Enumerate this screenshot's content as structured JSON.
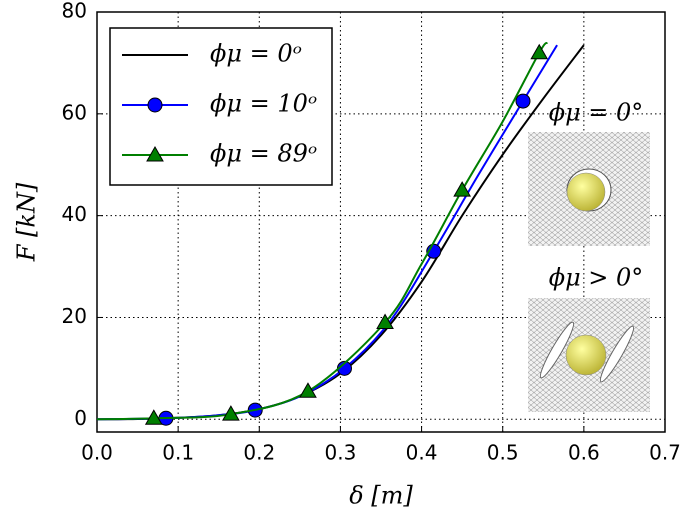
{
  "chart_data": {
    "type": "line",
    "xlabel": "δ [m]",
    "ylabel": "F [kN]",
    "xlim": [
      0,
      0.7
    ],
    "ylim": [
      -2.5,
      80
    ],
    "xticks": [
      {
        "value": 0,
        "label": "0.0"
      },
      0.1,
      0.2,
      0.3,
      0.4,
      0.5,
      0.6,
      0.7
    ],
    "yticks": [
      0,
      20,
      40,
      60,
      80
    ],
    "grid": true,
    "legend": "upper left",
    "series": [
      {
        "name": "ϕμ = 0ᵒ",
        "color": "#000000",
        "marker": "none",
        "x": [
          0,
          0.05,
          0.1,
          0.15,
          0.2,
          0.25,
          0.3,
          0.35,
          0.4,
          0.45,
          0.5,
          0.55,
          0.6
        ],
        "values": [
          0,
          0.05,
          0.3,
          0.8,
          2,
          4.5,
          9,
          16.5,
          27,
          40,
          52,
          63,
          73.5
        ],
        "markevery": []
      },
      {
        "name": "ϕμ = 10ᵒ",
        "color": "#0000ff",
        "marker": "circle",
        "x": [
          0,
          0.085,
          0.15,
          0.195,
          0.25,
          0.305,
          0.36,
          0.415,
          0.47,
          0.525,
          0.567
        ],
        "values": [
          0,
          0.2,
          0.8,
          1.8,
          4.5,
          10,
          19,
          33,
          48,
          62.5,
          73.5
        ],
        "markevery": [
          1,
          3,
          5,
          7,
          9
        ]
      },
      {
        "name": "ϕμ = 89ᵒ",
        "color": "#007f00",
        "marker": "triangle",
        "x": [
          0,
          0.07,
          0.165,
          0.26,
          0.355,
          0.4,
          0.45,
          0.5,
          0.545,
          0.555
        ],
        "values": [
          0,
          0.2,
          1,
          5.5,
          19,
          30.5,
          45,
          58.5,
          72,
          74
        ],
        "markevery": [
          1,
          2,
          3,
          4,
          6,
          8
        ]
      }
    ],
    "annotations": [
      "ϕμ = 0°",
      "ϕμ > 0°"
    ]
  }
}
